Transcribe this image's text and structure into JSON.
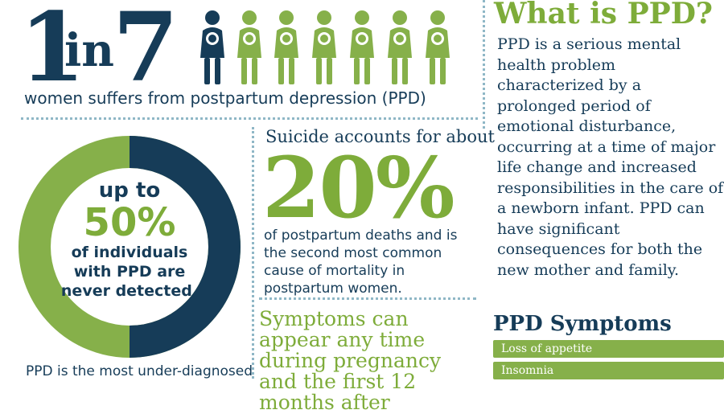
{
  "headline": {
    "one": "1",
    "in": "in",
    "seven": "7",
    "subtitle": "women suffers from postpartum depression (PPD)"
  },
  "colors": {
    "navy": "#163c58",
    "green": "#7eac3a",
    "dot": "#8fb7c6"
  },
  "donut": {
    "line1": "up to",
    "percent": "50%",
    "line2": "of individuals",
    "line3": "with PPD are",
    "line4": "never detected.",
    "fraction": 0.5
  },
  "underdiagnosed": "PPD is the most under-diagnosed",
  "suicide": {
    "intro": "Suicide accounts for about",
    "percent": "20%",
    "desc": "of postpartum deaths and is the second most common cause of mortality in postpartum women."
  },
  "symptoms_time": "Symptoms can appear any time during pregnancy and the first 12 months after",
  "what": {
    "title": "What is PPD?",
    "body": "PPD is a serious mental health problem characterized by a prolonged period of emotional disturbance, occurring at a time of major life change and increased responsibilities in the care of a newborn infant. PPD can have significant consequences for both the new mother and family."
  },
  "symptoms_list": {
    "title": "PPD Symptoms",
    "items": [
      "Loss of appetite",
      "Insomnia"
    ]
  }
}
